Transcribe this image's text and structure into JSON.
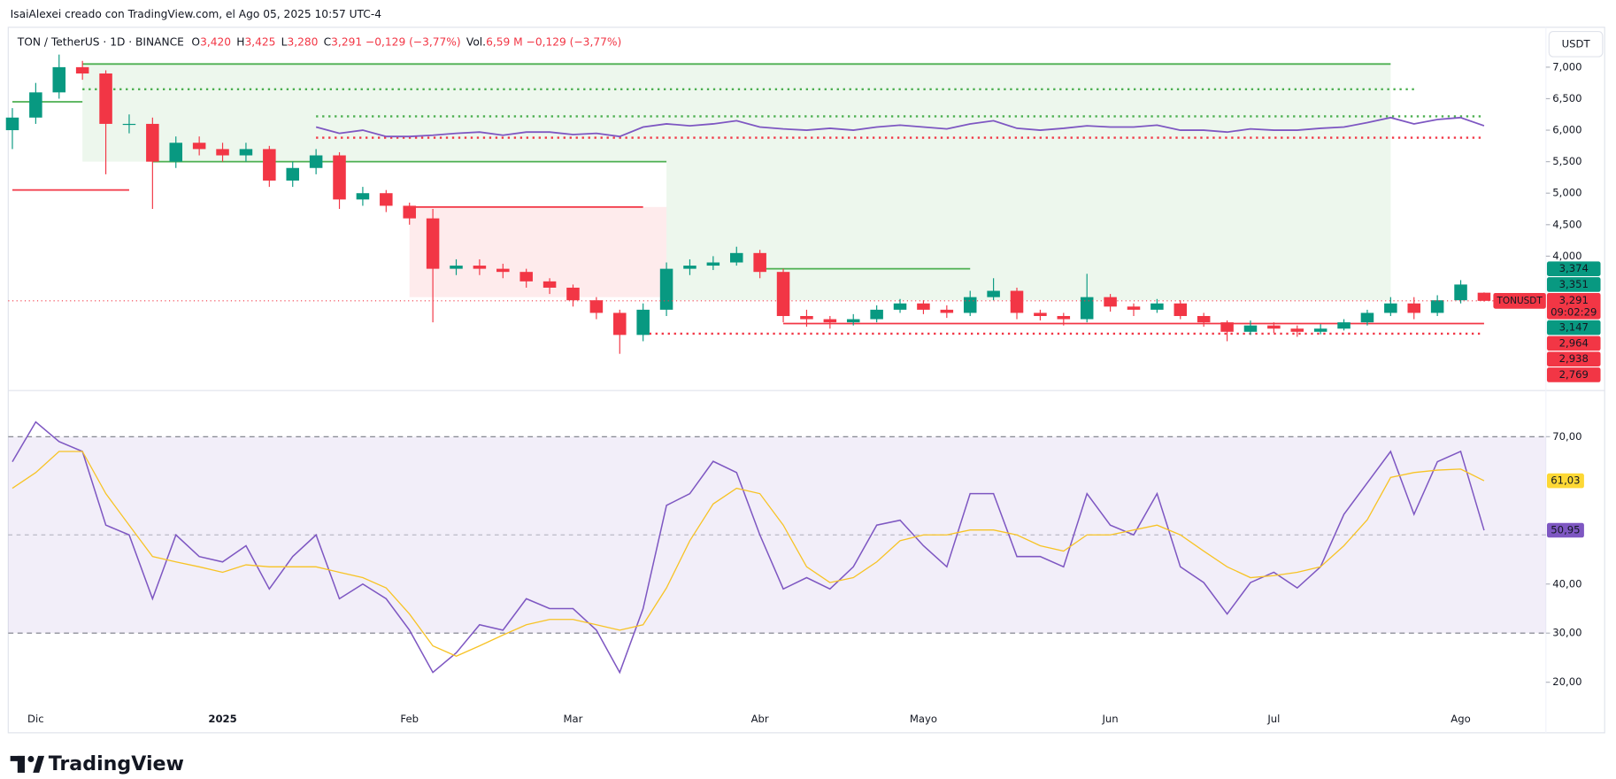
{
  "header": {
    "credit": "IsaiAlexei creado con TradingView.com, el Ago 05, 2025 10:57 UTC-4",
    "symbol": "TON / TetherUS · 1D · BINANCE",
    "ohlc": [
      {
        "key": "O",
        "value": "3,420"
      },
      {
        "key": "H",
        "value": "3,425"
      },
      {
        "key": "L",
        "value": "3,280"
      },
      {
        "key": "C",
        "value": "3,291"
      }
    ],
    "change": "−0,129 (−3,77%)",
    "vol_label": "Vol.",
    "vol": "6,59 M",
    "vol_change": "−0,129 (−3,77%)"
  },
  "currency": "USDT",
  "logo": "TradingView",
  "chart_data": [
    {
      "type": "candlestick",
      "categories": [
        null,
        "Dic",
        null,
        null,
        null,
        null,
        null,
        null,
        null,
        "2025",
        null,
        null,
        null,
        null,
        null,
        null,
        null,
        "Feb",
        null,
        null,
        null,
        null,
        null,
        null,
        "Mar",
        null,
        null,
        null,
        null,
        null,
        null,
        null,
        "Abr",
        null,
        null,
        null,
        null,
        null,
        null,
        "Mayo",
        null,
        null,
        null,
        null,
        null,
        null,
        null,
        "Jun",
        null,
        null,
        null,
        null,
        null,
        null,
        "Jul",
        null,
        null,
        null,
        null,
        null,
        null,
        null,
        "Ago",
        null
      ],
      "ylim": [
        1.867,
        7.633
      ],
      "yticks": [
        {
          "value": 7,
          "label": "7,000"
        },
        {
          "value": 6.5,
          "label": "6,500"
        },
        {
          "value": 6,
          "label": "6,000"
        },
        {
          "value": 5.5,
          "label": "5,500"
        },
        {
          "value": 5,
          "label": "5,000"
        },
        {
          "value": 4.5,
          "label": "4,500"
        },
        {
          "value": 4,
          "label": "4,000"
        }
      ],
      "up_color": "#089981",
      "down_color": "#f23645",
      "open": [
        6,
        6.2,
        6.6,
        7,
        6.9,
        6.1,
        6.1,
        5.5,
        5.8,
        5.7,
        5.6,
        5.7,
        5.2,
        5.4,
        5.6,
        4.9,
        5,
        4.8,
        4.6,
        3.8,
        3.85,
        3.8,
        3.75,
        3.6,
        3.5,
        3.3,
        3.1,
        2.75,
        3.15,
        3.8,
        3.85,
        3.9,
        4.05,
        3.75,
        3.05,
        3,
        2.95,
        3,
        3.15,
        3.25,
        3.15,
        3.1,
        3.35,
        3.45,
        3.1,
        3.05,
        3,
        3.35,
        3.2,
        3.15,
        3.25,
        3.05,
        2.95,
        2.8,
        2.9,
        2.85,
        2.8,
        2.85,
        2.95,
        3.1,
        3.25,
        3.1,
        3.3,
        3.42
      ],
      "high": [
        6.35,
        6.75,
        7.2,
        7.1,
        6.95,
        6.25,
        6.2,
        5.9,
        5.9,
        5.8,
        5.8,
        5.75,
        5.5,
        5.7,
        5.65,
        5.1,
        5.05,
        4.85,
        4.75,
        3.95,
        3.95,
        3.88,
        3.8,
        3.65,
        3.55,
        3.35,
        3.15,
        3.25,
        3.9,
        3.95,
        4,
        4.15,
        4.1,
        3.8,
        3.15,
        3.05,
        3.08,
        3.22,
        3.32,
        3.3,
        3.22,
        3.45,
        3.65,
        3.5,
        3.15,
        3.1,
        3.72,
        3.4,
        3.25,
        3.32,
        3.3,
        3.1,
        2.98,
        2.98,
        2.95,
        2.9,
        2.92,
        3,
        3.15,
        3.35,
        3.35,
        3.38,
        3.62,
        3.425
      ],
      "low": [
        5.7,
        6.1,
        6.5,
        6.8,
        5.3,
        5.95,
        4.75,
        5.4,
        5.6,
        5.5,
        5.5,
        5.1,
        5.1,
        5.3,
        4.75,
        4.8,
        4.7,
        4.5,
        2.95,
        3.7,
        3.7,
        3.65,
        3.5,
        3.4,
        3.2,
        3,
        2.45,
        2.65,
        3.05,
        3.7,
        3.78,
        3.85,
        3.65,
        2.95,
        2.88,
        2.85,
        2.9,
        2.95,
        3.1,
        3.08,
        3.02,
        3.05,
        3.3,
        3,
        2.98,
        2.9,
        2.95,
        3.12,
        3.05,
        3.1,
        3,
        2.88,
        2.65,
        2.75,
        2.78,
        2.72,
        2.76,
        2.82,
        2.9,
        3.05,
        3,
        3.05,
        3.25,
        3.28
      ],
      "close": [
        6.2,
        6.6,
        7,
        6.9,
        6.1,
        6.1,
        5.5,
        5.8,
        5.7,
        5.6,
        5.7,
        5.2,
        5.4,
        5.6,
        4.9,
        5,
        4.8,
        4.6,
        3.8,
        3.85,
        3.8,
        3.75,
        3.6,
        3.5,
        3.3,
        3.1,
        2.75,
        3.15,
        3.8,
        3.85,
        3.9,
        4.05,
        3.75,
        3.05,
        3,
        2.95,
        3,
        3.15,
        3.25,
        3.15,
        3.1,
        3.35,
        3.45,
        3.1,
        3.05,
        3,
        3.35,
        3.2,
        3.15,
        3.25,
        3.05,
        2.95,
        2.8,
        2.9,
        2.85,
        2.8,
        2.85,
        2.95,
        3.1,
        3.25,
        3.1,
        3.3,
        3.55,
        3.291
      ],
      "indicator": {
        "color": "#7e57c2",
        "values": [
          null,
          null,
          null,
          null,
          null,
          null,
          null,
          null,
          null,
          null,
          null,
          null,
          null,
          6.05,
          5.95,
          6,
          5.9,
          5.9,
          5.92,
          5.95,
          5.97,
          5.92,
          5.97,
          5.97,
          5.93,
          5.95,
          5.9,
          6.05,
          6.1,
          6.07,
          6.1,
          6.15,
          6.05,
          6.02,
          6,
          6.03,
          6,
          6.05,
          6.08,
          6.05,
          6.02,
          6.1,
          6.15,
          6.03,
          6,
          6.03,
          6.07,
          6.05,
          6.05,
          6.08,
          6,
          6,
          5.97,
          6.02,
          6,
          6,
          6.03,
          6.05,
          6.12,
          6.2,
          6.1,
          6.17,
          6.2,
          6.07
        ]
      },
      "zones": [
        {
          "top": 7.05,
          "bottom": 5.5,
          "from": 3,
          "to": 28,
          "color": "#4caf50"
        },
        {
          "top": 7.05,
          "bottom": 3.3,
          "from": 28,
          "to": 59,
          "color": "#4caf50"
        },
        {
          "top": 4.78,
          "bottom": 3.35,
          "from": 17,
          "to": 28,
          "color": "#f23645"
        }
      ],
      "levels": [
        {
          "value": 7.05,
          "color": "#4caf50",
          "style": "solid",
          "from": 3,
          "to": 59
        },
        {
          "value": 6.65,
          "color": "#4caf50",
          "style": "dotted",
          "from": 3,
          "to": 60
        },
        {
          "value": 6.45,
          "color": "#4caf50",
          "style": "solid",
          "from": 0,
          "to": 3
        },
        {
          "value": 6.22,
          "color": "#4caf50",
          "style": "dotted",
          "from": 13,
          "to": 63
        },
        {
          "value": 5.88,
          "color": "#f23645",
          "style": "dotted",
          "from": 13,
          "to": 63
        },
        {
          "value": 5.5,
          "color": "#4caf50",
          "style": "solid",
          "from": 6,
          "to": 28
        },
        {
          "value": 5.05,
          "color": "#f23645",
          "style": "solid",
          "from": 0,
          "to": 5
        },
        {
          "value": 4.78,
          "color": "#f23645",
          "style": "solid",
          "from": 17,
          "to": 27
        },
        {
          "value": 3.8,
          "color": "#4caf50",
          "style": "solid",
          "from": 32,
          "to": 41
        },
        {
          "value": 2.93,
          "color": "#f23645",
          "style": "solid",
          "from": 33,
          "to": 63
        },
        {
          "value": 2.77,
          "color": "#f23645",
          "style": "dotted",
          "from": 27,
          "to": 63
        }
      ],
      "price_markers": [
        {
          "value": 3.374,
          "label": "3,374",
          "color": "#089981"
        },
        {
          "value": 3.351,
          "label": "3,351",
          "color": "#089981"
        },
        {
          "value": 3.291,
          "label": "3,291",
          "color": "#f23645",
          "symbol": "TONUSDT",
          "countdown": "09:02:29"
        },
        {
          "value": 3.147,
          "label": "3,147",
          "color": "#089981"
        },
        {
          "value": 2.964,
          "label": "2,964",
          "color": "#f23645"
        },
        {
          "value": 2.938,
          "label": "2,938",
          "color": "#f23645"
        },
        {
          "value": 2.769,
          "label": "2,769",
          "color": "#f23645"
        }
      ]
    },
    {
      "type": "line",
      "ylim": [
        9.7,
        79.4
      ],
      "yticks": [
        {
          "value": 70,
          "label": "70,00"
        },
        {
          "value": 40,
          "label": "40,00"
        },
        {
          "value": 30,
          "label": "30,00"
        },
        {
          "value": 20,
          "label": "20,00"
        }
      ],
      "band": [
        30,
        70
      ],
      "midline": 50,
      "band_color": "#7e57c2",
      "series": [
        {
          "color": "#7e57c2",
          "values": [
            64.9,
            73,
            69,
            67,
            52,
            50,
            37,
            50,
            45.6,
            44.5,
            47.8,
            39,
            45.6,
            50,
            37,
            40,
            37,
            30.6,
            22,
            26,
            31.7,
            30.6,
            37,
            35,
            35,
            30.6,
            22,
            35,
            56,
            58.4,
            65,
            62.7,
            50,
            39,
            41.3,
            39,
            43.5,
            52,
            53,
            47.8,
            43.5,
            58.4,
            58.4,
            45.6,
            45.6,
            43.5,
            58.4,
            52,
            50,
            58.4,
            43.5,
            40.3,
            33.9,
            40.3,
            42.4,
            39.2,
            43.5,
            54.2,
            60.6,
            67,
            54.2,
            64.9,
            67,
            50.95
          ]
        },
        {
          "color": "#f7c325",
          "values": [
            59.5,
            62.7,
            67,
            67,
            58.4,
            52,
            45.6,
            44.5,
            43.5,
            42.4,
            43.9,
            43.5,
            43.5,
            43.5,
            42.4,
            41.3,
            39.2,
            33.9,
            27.4,
            25.3,
            27.4,
            29.6,
            31.7,
            32.8,
            32.8,
            31.7,
            30.6,
            31.7,
            39.2,
            48.8,
            56.3,
            59.5,
            58.4,
            52,
            43.5,
            40.3,
            41.3,
            44.5,
            48.8,
            50,
            50,
            51,
            51,
            50,
            47.8,
            46.7,
            50,
            50,
            51,
            52,
            50,
            46.7,
            43.5,
            41.3,
            41.7,
            42.4,
            43.5,
            47.8,
            53.1,
            61.7,
            62.7,
            63.2,
            63.4,
            61.03
          ]
        }
      ],
      "markers": [
        {
          "value": 61.03,
          "label": "61,03",
          "color": "#fdd835",
          "text_color": "#131722"
        },
        {
          "value": 50.95,
          "label": "50,95",
          "color": "#7e57c2",
          "text_color": "#ffffff"
        }
      ]
    }
  ]
}
